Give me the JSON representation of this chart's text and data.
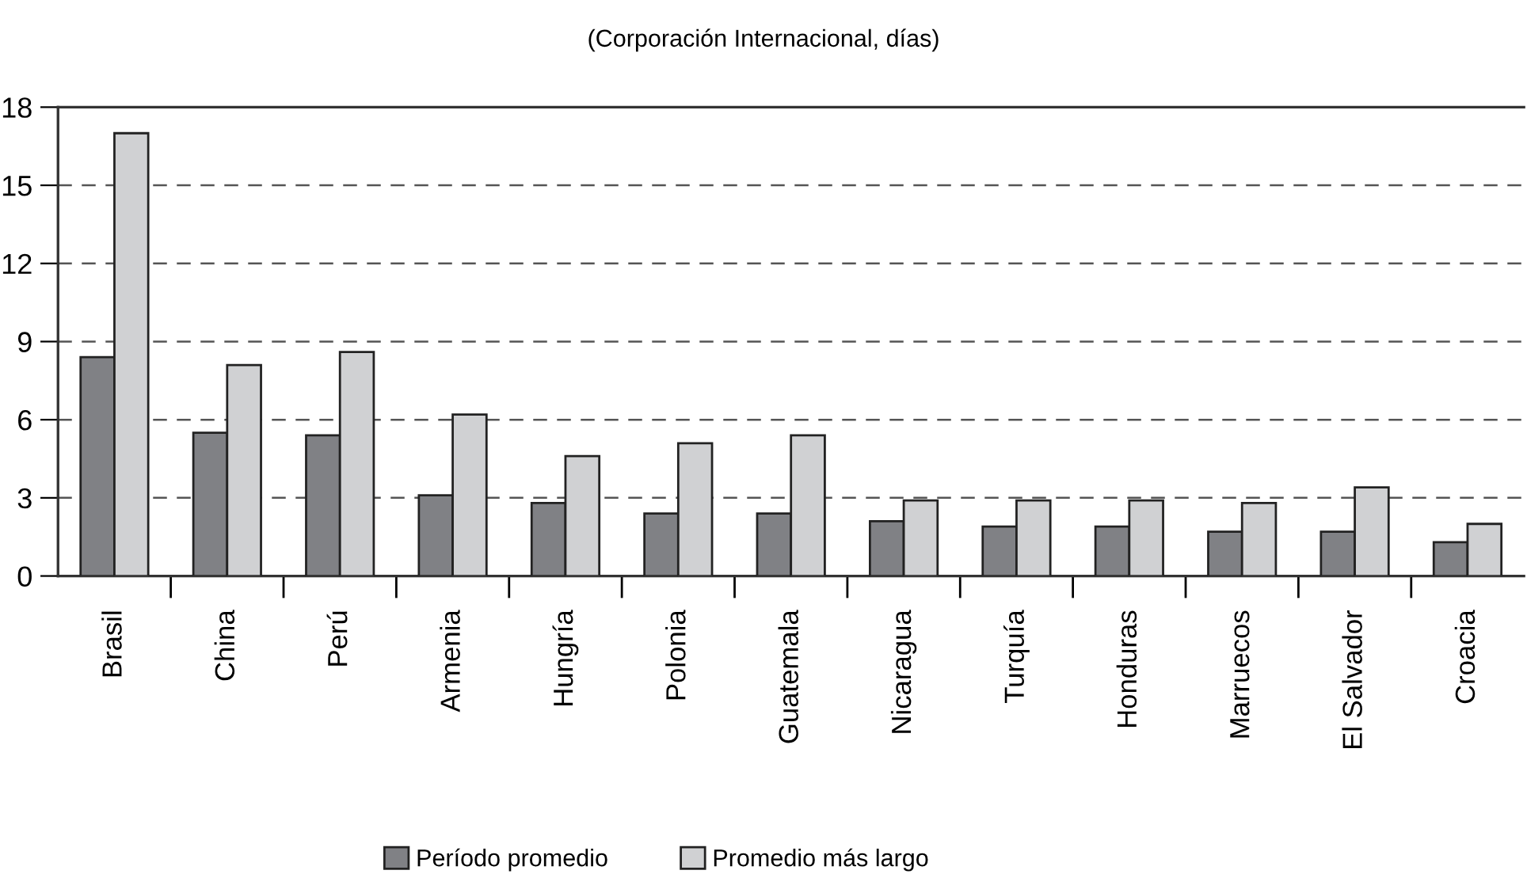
{
  "chart_data": {
    "type": "bar",
    "title": "(Corporación Internacional, días)",
    "categories": [
      "Brasil",
      "China",
      "Perú",
      "Armenia",
      "Hungría",
      "Polonia",
      "Guatemala",
      "Nicaragua",
      "Turquía",
      "Honduras",
      "Marruecos",
      "El Salvador",
      "Croacia"
    ],
    "series": [
      {
        "name": "Período promedio",
        "color": "#808185",
        "values": [
          8.4,
          5.5,
          5.4,
          3.1,
          2.8,
          2.4,
          2.4,
          2.1,
          1.9,
          1.9,
          1.7,
          1.7,
          1.3
        ]
      },
      {
        "name": "Promedio más largo",
        "color": "#d0d1d3",
        "values": [
          17,
          8.1,
          8.6,
          6.2,
          4.6,
          5.1,
          5.4,
          2.9,
          2.9,
          2.9,
          2.8,
          3.4,
          2.0
        ]
      }
    ],
    "ylim": [
      0,
      18
    ],
    "yticks": [
      0,
      3,
      6,
      9,
      12,
      15,
      18
    ],
    "grid": "y",
    "line_style": "dashed",
    "legend": "bottom"
  }
}
